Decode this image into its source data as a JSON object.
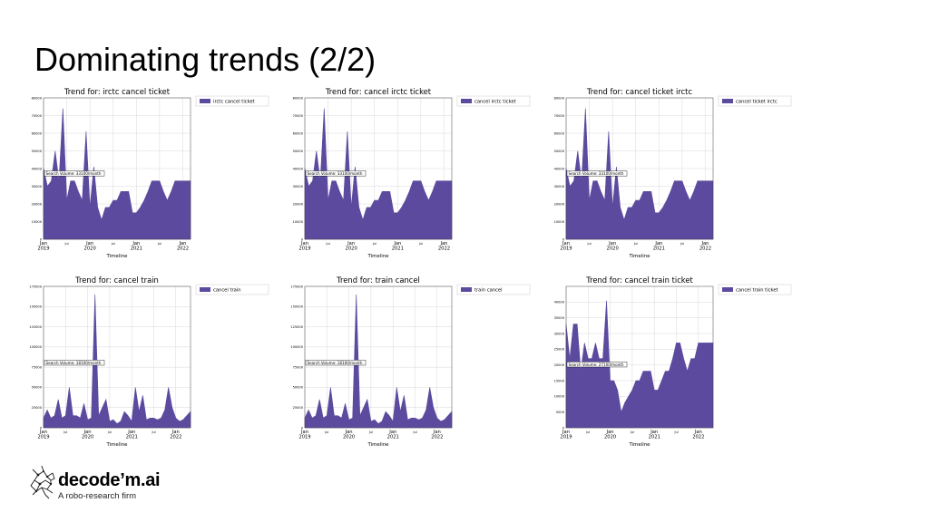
{
  "slide": {
    "title": "Dominating trends (2/2)",
    "brand": {
      "name": "decode’m.ai",
      "tagline": "A robo-research firm"
    }
  },
  "colors": {
    "fill": "#5b4a9e",
    "grid": "#d8d8d8",
    "axis": "#000000"
  },
  "chart_data": [
    {
      "type": "area",
      "title": "Trend for: irctc cancel ticket",
      "xlabel": "Timeline",
      "legend": [
        "irctc cancel ticket"
      ],
      "legend_position": "right",
      "ylim": [
        0,
        80000
      ],
      "yticks": [
        0,
        10000,
        20000,
        30000,
        40000,
        50000,
        60000,
        70000,
        80000
      ],
      "xticks": [
        {
          "m": 0,
          "label": "Jan\n2019"
        },
        {
          "m": 6,
          "label": "Jul"
        },
        {
          "m": 12,
          "label": "Jan\n2020"
        },
        {
          "m": 18,
          "label": "Jul"
        },
        {
          "m": 24,
          "label": "Jan\n2021"
        },
        {
          "m": 30,
          "label": "Jul"
        },
        {
          "m": 36,
          "label": "Jan\n2022"
        }
      ],
      "xrange": [
        0,
        38
      ],
      "annotation": "Search Volume: 33100/month",
      "annotation_value": 37000,
      "series": [
        {
          "name": "irctc cancel ticket",
          "x": [
            0,
            1,
            2,
            3,
            4,
            5,
            6,
            7,
            8,
            9,
            10,
            11,
            12,
            13,
            14,
            15,
            16,
            17,
            18,
            19,
            20,
            21,
            22,
            23,
            24,
            25,
            26,
            27,
            28,
            29,
            30,
            31,
            32,
            33,
            34,
            35,
            36,
            37,
            38
          ],
          "values": [
            40000,
            30000,
            33000,
            50000,
            33000,
            74000,
            22000,
            33000,
            33000,
            27000,
            22000,
            61000,
            18000,
            41000,
            18000,
            11000,
            18000,
            18000,
            22000,
            22000,
            27000,
            27000,
            27000,
            15000,
            15000,
            18000,
            22000,
            27000,
            33000,
            33000,
            33000,
            27000,
            22000,
            27000,
            33000,
            33000,
            33000,
            33000,
            33000
          ]
        }
      ]
    },
    {
      "type": "area",
      "title": "Trend for: cancel irctc ticket",
      "xlabel": "Timeline",
      "legend": [
        "cancel irctc ticket"
      ],
      "legend_position": "right",
      "ylim": [
        0,
        80000
      ],
      "yticks": [
        0,
        10000,
        20000,
        30000,
        40000,
        50000,
        60000,
        70000,
        80000
      ],
      "xticks": [
        {
          "m": 0,
          "label": "Jan\n2019"
        },
        {
          "m": 6,
          "label": "Jul"
        },
        {
          "m": 12,
          "label": "Jan\n2020"
        },
        {
          "m": 18,
          "label": "Jul"
        },
        {
          "m": 24,
          "label": "Jan\n2021"
        },
        {
          "m": 30,
          "label": "Jul"
        },
        {
          "m": 36,
          "label": "Jan\n2022"
        }
      ],
      "xrange": [
        0,
        38
      ],
      "annotation": "Search Volume: 33100/month",
      "annotation_value": 37000,
      "series": [
        {
          "name": "cancel irctc ticket",
          "x": [
            0,
            1,
            2,
            3,
            4,
            5,
            6,
            7,
            8,
            9,
            10,
            11,
            12,
            13,
            14,
            15,
            16,
            17,
            18,
            19,
            20,
            21,
            22,
            23,
            24,
            25,
            26,
            27,
            28,
            29,
            30,
            31,
            32,
            33,
            34,
            35,
            36,
            37,
            38
          ],
          "values": [
            40000,
            30000,
            33000,
            50000,
            33000,
            74000,
            22000,
            33000,
            33000,
            27000,
            22000,
            61000,
            18000,
            41000,
            18000,
            11000,
            18000,
            18000,
            22000,
            22000,
            27000,
            27000,
            27000,
            15000,
            15000,
            18000,
            22000,
            27000,
            33000,
            33000,
            33000,
            27000,
            22000,
            27000,
            33000,
            33000,
            33000,
            33000,
            33000
          ]
        }
      ]
    },
    {
      "type": "area",
      "title": "Trend for: cancel ticket irctc",
      "xlabel": "Timeline",
      "legend": [
        "cancel ticket irctc"
      ],
      "legend_position": "right",
      "ylim": [
        0,
        80000
      ],
      "yticks": [
        0,
        10000,
        20000,
        30000,
        40000,
        50000,
        60000,
        70000,
        80000
      ],
      "xticks": [
        {
          "m": 0,
          "label": "Jan\n2019"
        },
        {
          "m": 6,
          "label": "Jul"
        },
        {
          "m": 12,
          "label": "Jan\n2020"
        },
        {
          "m": 18,
          "label": "Jul"
        },
        {
          "m": 24,
          "label": "Jan\n2021"
        },
        {
          "m": 30,
          "label": "Jul"
        },
        {
          "m": 36,
          "label": "Jan\n2022"
        }
      ],
      "xrange": [
        0,
        38
      ],
      "annotation": "Search Volume: 33100/month",
      "annotation_value": 37000,
      "series": [
        {
          "name": "cancel ticket irctc",
          "x": [
            0,
            1,
            2,
            3,
            4,
            5,
            6,
            7,
            8,
            9,
            10,
            11,
            12,
            13,
            14,
            15,
            16,
            17,
            18,
            19,
            20,
            21,
            22,
            23,
            24,
            25,
            26,
            27,
            28,
            29,
            30,
            31,
            32,
            33,
            34,
            35,
            36,
            37,
            38
          ],
          "values": [
            40000,
            30000,
            33000,
            50000,
            33000,
            74000,
            22000,
            33000,
            33000,
            27000,
            22000,
            61000,
            18000,
            41000,
            18000,
            11000,
            18000,
            18000,
            22000,
            22000,
            27000,
            27000,
            27000,
            15000,
            15000,
            18000,
            22000,
            27000,
            33000,
            33000,
            33000,
            27000,
            22000,
            27000,
            33000,
            33000,
            33000,
            33000,
            33000
          ]
        }
      ]
    },
    {
      "type": "area",
      "title": "Trend for: cancel train",
      "xlabel": "Timeline",
      "legend": [
        "cancel train"
      ],
      "legend_position": "right",
      "ylim": [
        0,
        175000
      ],
      "yticks": [
        0,
        25000,
        50000,
        75000,
        100000,
        125000,
        150000,
        175000
      ],
      "xticks": [
        {
          "m": 0,
          "label": "Jan\n2019"
        },
        {
          "m": 6,
          "label": "Jul"
        },
        {
          "m": 12,
          "label": "Jan\n2020"
        },
        {
          "m": 18,
          "label": "Jul"
        },
        {
          "m": 24,
          "label": "Jan\n2021"
        },
        {
          "m": 30,
          "label": "Jul"
        },
        {
          "m": 36,
          "label": "Jan\n2022"
        }
      ],
      "xrange": [
        0,
        40
      ],
      "annotation": "Search Volume: 18100/month",
      "annotation_value": 80000,
      "series": [
        {
          "name": "cancel train",
          "x": [
            0,
            1,
            2,
            3,
            4,
            5,
            6,
            7,
            8,
            9,
            10,
            11,
            12,
            13,
            14,
            15,
            16,
            17,
            18,
            19,
            20,
            21,
            22,
            23,
            24,
            25,
            26,
            27,
            28,
            29,
            30,
            31,
            32,
            33,
            34,
            35,
            36,
            37,
            38,
            39,
            40
          ],
          "values": [
            12000,
            22000,
            12000,
            15000,
            35000,
            12000,
            15000,
            50000,
            15000,
            15000,
            12000,
            30000,
            10000,
            12000,
            165000,
            15000,
            25000,
            35000,
            8000,
            10000,
            5000,
            8000,
            20000,
            15000,
            8000,
            50000,
            20000,
            40000,
            10000,
            12000,
            12000,
            10000,
            12000,
            22000,
            50000,
            25000,
            12000,
            8000,
            10000,
            15000,
            20000
          ]
        }
      ]
    },
    {
      "type": "area",
      "title": "Trend for: train cancel",
      "xlabel": "Timeline",
      "legend": [
        "train cancel"
      ],
      "legend_position": "right",
      "ylim": [
        0,
        175000
      ],
      "yticks": [
        0,
        25000,
        50000,
        75000,
        100000,
        125000,
        150000,
        175000
      ],
      "xticks": [
        {
          "m": 0,
          "label": "Jan\n2019"
        },
        {
          "m": 6,
          "label": "Jul"
        },
        {
          "m": 12,
          "label": "Jan\n2020"
        },
        {
          "m": 18,
          "label": "Jul"
        },
        {
          "m": 24,
          "label": "Jan\n2021"
        },
        {
          "m": 30,
          "label": "Jul"
        },
        {
          "m": 36,
          "label": "Jan\n2022"
        }
      ],
      "xrange": [
        0,
        40
      ],
      "annotation": "Search Volume: 18100/month",
      "annotation_value": 80000,
      "series": [
        {
          "name": "train cancel",
          "x": [
            0,
            1,
            2,
            3,
            4,
            5,
            6,
            7,
            8,
            9,
            10,
            11,
            12,
            13,
            14,
            15,
            16,
            17,
            18,
            19,
            20,
            21,
            22,
            23,
            24,
            25,
            26,
            27,
            28,
            29,
            30,
            31,
            32,
            33,
            34,
            35,
            36,
            37,
            38,
            39,
            40
          ],
          "values": [
            12000,
            22000,
            12000,
            15000,
            35000,
            12000,
            15000,
            50000,
            15000,
            15000,
            12000,
            30000,
            10000,
            12000,
            165000,
            15000,
            25000,
            35000,
            8000,
            10000,
            5000,
            8000,
            20000,
            15000,
            8000,
            50000,
            20000,
            40000,
            10000,
            12000,
            12000,
            10000,
            12000,
            22000,
            50000,
            25000,
            12000,
            8000,
            10000,
            15000,
            20000
          ]
        }
      ]
    },
    {
      "type": "area",
      "title": "Trend for: cancel train ticket",
      "xlabel": "Timeline",
      "legend": [
        "cancel train ticket"
      ],
      "legend_position": "right",
      "ylim": [
        0,
        45000
      ],
      "yticks": [
        0,
        5000,
        10000,
        15000,
        20000,
        25000,
        30000,
        35000,
        40000
      ],
      "xticks": [
        {
          "m": 0,
          "label": "Jan\n2019"
        },
        {
          "m": 6,
          "label": "Jul"
        },
        {
          "m": 12,
          "label": "Jan\n2020"
        },
        {
          "m": 18,
          "label": "Jul"
        },
        {
          "m": 24,
          "label": "Jan\n2021"
        },
        {
          "m": 30,
          "label": "Jul"
        },
        {
          "m": 36,
          "label": "Jan\n2022"
        }
      ],
      "xrange": [
        0,
        40
      ],
      "annotation": "Search Volume: 27100/month",
      "annotation_value": 20000,
      "series": [
        {
          "name": "cancel train ticket",
          "x": [
            0,
            1,
            2,
            3,
            4,
            5,
            6,
            7,
            8,
            9,
            10,
            11,
            12,
            13,
            14,
            15,
            16,
            17,
            18,
            19,
            20,
            21,
            22,
            23,
            24,
            25,
            26,
            27,
            28,
            29,
            30,
            31,
            32,
            33,
            34,
            35,
            36,
            37,
            38,
            39,
            40
          ],
          "values": [
            33000,
            22000,
            33000,
            33000,
            18000,
            27000,
            22000,
            22000,
            27000,
            22000,
            22000,
            40500,
            15000,
            15000,
            12000,
            5000,
            8000,
            10000,
            12000,
            15000,
            15000,
            18000,
            18000,
            18000,
            12000,
            12000,
            15000,
            18000,
            18000,
            22000,
            27000,
            27000,
            22000,
            18000,
            22000,
            22000,
            27000,
            27000,
            27000,
            27000,
            27000
          ]
        }
      ]
    }
  ]
}
